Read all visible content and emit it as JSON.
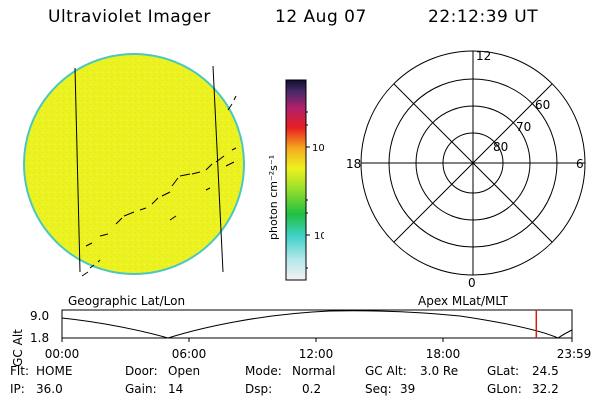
{
  "header": {
    "title": "Ultraviolet Imager",
    "date": "12 Aug 07",
    "time": "22:12:39 UT"
  },
  "colorbar": {
    "unit_label": "photon cm⁻²s⁻¹",
    "ticks": [
      "100",
      "10"
    ]
  },
  "polar": {
    "labels": {
      "top": "12",
      "left": "18",
      "right": "6",
      "bottom": "0"
    },
    "rings": [
      "60",
      "70",
      "80"
    ]
  },
  "orbit": {
    "left_caption": "Geographic Lat/Lon",
    "right_caption": "Apex MLat/MLT",
    "ylabel": "GC Alt",
    "y_ticks": [
      "9.0",
      "1.8"
    ],
    "x_ticks": [
      "00:00",
      "06:00",
      "12:00",
      "18:00",
      "23:59"
    ],
    "marker_time_fraction": 0.93
  },
  "status": {
    "flt_label": "Flt:",
    "flt_value": "HOME",
    "ip_label": "IP:",
    "ip_value": "36.0",
    "door_label": "Door:",
    "door_value": "Open",
    "gain_label": "Gain:",
    "gain_value": "14",
    "mode_label": "Mode:",
    "mode_value": "Normal",
    "dsp_label": "Dsp:",
    "dsp_value": "0.2",
    "gcalt_label": "GC Alt:",
    "gcalt_value": "3.0 Re",
    "seq_label": "Seq:",
    "seq_value": "39",
    "glat_label": "GLat:",
    "glat_value": "24.5",
    "glon_label": "GLon:",
    "glon_value": "32.2"
  },
  "colors": {
    "image_fill": "#ecf21f",
    "image_edge": "#4ac8c0",
    "marker": "#d0201a"
  }
}
